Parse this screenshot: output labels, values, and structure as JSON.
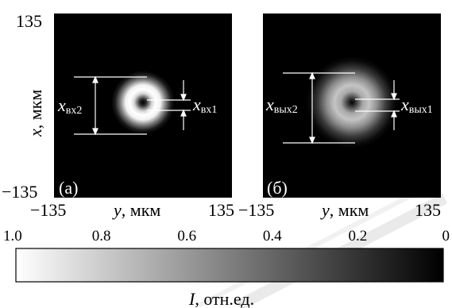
{
  "axes": {
    "y_tick_top": "135",
    "y_tick_bottom": "−135",
    "y_label_var": "x",
    "y_label_unit": ", мкм",
    "a_x_tick_left": "−135",
    "a_x_tick_right": "135",
    "b_x_tick_left": "−135",
    "b_x_tick_right": "135",
    "x_label_var": "y",
    "x_label_unit": ", мкм"
  },
  "panels": {
    "a": {
      "tag": "(а)",
      "outer_var": "x",
      "outer_sub": "вх2",
      "inner_var": "x",
      "inner_sub": "вх1"
    },
    "b": {
      "tag": "(б)",
      "outer_var": "x",
      "outer_sub": "вых2",
      "inner_var": "x",
      "inner_sub": "вых1"
    }
  },
  "colorbar": {
    "ticks": [
      "1.0",
      "0.8",
      "0.6",
      "0.4",
      "0.2",
      "0"
    ],
    "tick_values": [
      1.0,
      0.8,
      0.6,
      0.4,
      0.2,
      0
    ],
    "label_var": "I",
    "label_unit": ", отн.ед.",
    "start_color": "#ffffff",
    "end_color": "#000000"
  },
  "colors": {
    "background": "#ffffff",
    "field": "#000000",
    "marker_lines": "#ffffff",
    "watermark": "#d4d4d4"
  }
}
